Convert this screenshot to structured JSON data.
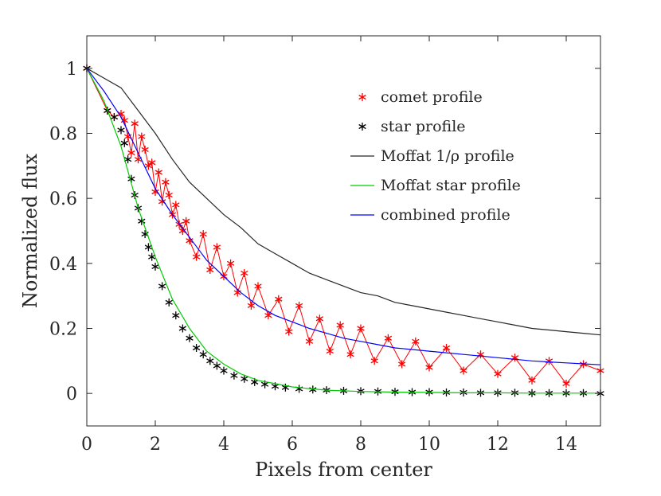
{
  "chart_data": {
    "type": "line",
    "xlabel": "Pixels from center",
    "ylabel": "Normalized flux",
    "xlim": [
      0,
      15
    ],
    "ylim": [
      -0.1,
      1.1
    ],
    "xticks": [
      0,
      2,
      4,
      6,
      8,
      10,
      12,
      14
    ],
    "yticks": [
      0,
      0.2,
      0.4,
      0.6,
      0.8,
      1
    ],
    "legend_position": "upper-right",
    "grid": false,
    "series": [
      {
        "name": "comet profile",
        "style": "red-asterisk-with-line",
        "color": "#ff0000",
        "x": [
          0,
          0.6,
          0.8,
          1.0,
          1.1,
          1.2,
          1.3,
          1.4,
          1.5,
          1.6,
          1.7,
          1.8,
          1.9,
          2.0,
          2.1,
          2.2,
          2.3,
          2.4,
          2.5,
          2.6,
          2.7,
          2.8,
          2.9,
          3.0,
          3.2,
          3.4,
          3.6,
          3.8,
          4.0,
          4.2,
          4.4,
          4.6,
          4.8,
          5.0,
          5.3,
          5.6,
          5.9,
          6.2,
          6.5,
          6.8,
          7.1,
          7.4,
          7.7,
          8.0,
          8.4,
          8.8,
          9.2,
          9.6,
          10.0,
          10.5,
          11.0,
          11.5,
          12.0,
          12.5,
          13.0,
          13.5,
          14.0,
          14.5,
          15.0
        ],
        "y": [
          1.0,
          0.87,
          0.85,
          0.86,
          0.84,
          0.79,
          0.74,
          0.83,
          0.72,
          0.79,
          0.75,
          0.7,
          0.71,
          0.62,
          0.68,
          0.59,
          0.65,
          0.61,
          0.55,
          0.58,
          0.52,
          0.5,
          0.53,
          0.47,
          0.42,
          0.49,
          0.38,
          0.45,
          0.36,
          0.4,
          0.31,
          0.37,
          0.27,
          0.33,
          0.24,
          0.29,
          0.19,
          0.27,
          0.16,
          0.23,
          0.13,
          0.21,
          0.12,
          0.2,
          0.1,
          0.17,
          0.09,
          0.16,
          0.08,
          0.14,
          0.07,
          0.12,
          0.06,
          0.11,
          0.04,
          0.1,
          0.03,
          0.09,
          0.07
        ]
      },
      {
        "name": "star profile",
        "style": "black-asterisk",
        "color": "#000000",
        "x": [
          0,
          0.6,
          0.8,
          1.0,
          1.1,
          1.2,
          1.3,
          1.4,
          1.5,
          1.6,
          1.7,
          1.8,
          1.9,
          2.0,
          2.2,
          2.4,
          2.6,
          2.8,
          3.0,
          3.2,
          3.4,
          3.6,
          3.8,
          4.0,
          4.3,
          4.6,
          4.9,
          5.2,
          5.5,
          5.8,
          6.2,
          6.6,
          7.0,
          7.5,
          8.0,
          8.5,
          9.0,
          9.5,
          10.0,
          10.5,
          11.0,
          11.5,
          12.0,
          12.5,
          13.0,
          13.5,
          14.0,
          14.5,
          15.0
        ],
        "y": [
          1.0,
          0.87,
          0.85,
          0.81,
          0.77,
          0.72,
          0.66,
          0.61,
          0.57,
          0.53,
          0.49,
          0.45,
          0.42,
          0.39,
          0.33,
          0.28,
          0.24,
          0.2,
          0.17,
          0.14,
          0.12,
          0.1,
          0.085,
          0.07,
          0.055,
          0.045,
          0.035,
          0.028,
          0.022,
          0.018,
          0.014,
          0.012,
          0.01,
          0.008,
          0.007,
          0.006,
          0.005,
          0.004,
          0.004,
          0.003,
          0.003,
          0.002,
          0.002,
          0.002,
          0.001,
          0.001,
          0.001,
          0.001,
          0.0
        ]
      },
      {
        "name": "Moffat 1/ρ profile",
        "style": "black-line",
        "color": "#262626",
        "x": [
          0,
          0.5,
          1.0,
          1.5,
          2.0,
          2.5,
          3.0,
          3.5,
          4.0,
          4.5,
          5.0,
          5.5,
          6.0,
          6.5,
          7.0,
          7.5,
          8.0,
          8.5,
          9.0,
          9.5,
          10.0,
          10.5,
          11.0,
          11.5,
          12.0,
          12.5,
          13.0,
          13.5,
          14.0,
          14.5,
          15.0
        ],
        "y": [
          1.0,
          0.97,
          0.94,
          0.87,
          0.8,
          0.72,
          0.65,
          0.6,
          0.55,
          0.51,
          0.46,
          0.43,
          0.4,
          0.37,
          0.35,
          0.33,
          0.31,
          0.3,
          0.28,
          0.27,
          0.26,
          0.25,
          0.24,
          0.23,
          0.22,
          0.21,
          0.2,
          0.195,
          0.19,
          0.185,
          0.18
        ]
      },
      {
        "name": "Moffat star profile",
        "style": "green-line",
        "color": "#00cc00",
        "x": [
          0,
          0.5,
          1.0,
          1.5,
          2.0,
          2.5,
          3.0,
          3.5,
          4.0,
          4.5,
          5.0,
          5.5,
          6.0,
          7.0,
          8.0,
          9.0,
          10.0,
          11.0,
          12.0,
          13.0,
          14.0,
          15.0
        ],
        "y": [
          1.0,
          0.9,
          0.76,
          0.57,
          0.42,
          0.29,
          0.2,
          0.13,
          0.09,
          0.06,
          0.04,
          0.03,
          0.02,
          0.01,
          0.006,
          0.004,
          0.003,
          0.002,
          0.002,
          0.001,
          0.001,
          0.001
        ]
      },
      {
        "name": "combined profile",
        "style": "blue-line",
        "color": "#0000ff",
        "x": [
          0,
          0.5,
          1.0,
          1.5,
          2.0,
          2.5,
          3.0,
          3.5,
          4.0,
          4.5,
          5.0,
          5.5,
          6.0,
          6.5,
          7.0,
          7.5,
          8.0,
          8.5,
          9.0,
          9.5,
          10.0,
          10.5,
          11.0,
          11.5,
          12.0,
          12.5,
          13.0,
          13.5,
          14.0,
          14.5,
          15.0
        ],
        "y": [
          1.0,
          0.93,
          0.85,
          0.74,
          0.63,
          0.55,
          0.48,
          0.41,
          0.36,
          0.31,
          0.27,
          0.24,
          0.22,
          0.2,
          0.185,
          0.17,
          0.16,
          0.15,
          0.14,
          0.135,
          0.13,
          0.125,
          0.12,
          0.115,
          0.11,
          0.105,
          0.1,
          0.097,
          0.094,
          0.091,
          0.088
        ]
      }
    ]
  }
}
